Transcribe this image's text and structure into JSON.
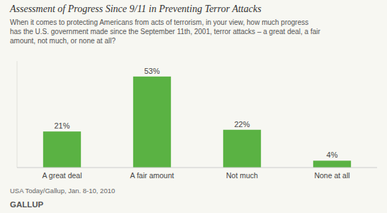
{
  "chart_data": {
    "type": "bar",
    "title": "Assessment of Progress Since 9/11 in Preventing Terror Attacks",
    "subtitle": [
      "When it comes to protecting Americans from acts of terrorism, in your view, how much progress",
      "has the U.S. government made since the September 11th, 2001, terror attacks – a great deal, a fair",
      "amount, not much, or none at all?"
    ],
    "categories": [
      "A great deal",
      "A fair amount",
      "Not much",
      "None at all"
    ],
    "values": [
      21,
      53,
      22,
      4
    ],
    "value_labels": [
      "21%",
      "53%",
      "22%",
      "4%"
    ],
    "data_labels": true,
    "color": "#5ab243",
    "ylim": [
      0,
      62
    ],
    "tick_labels": "x",
    "grid": false,
    "source": "USA Today/Gallup, Jan. 8-10, 2010",
    "brand": "GALLUP"
  }
}
